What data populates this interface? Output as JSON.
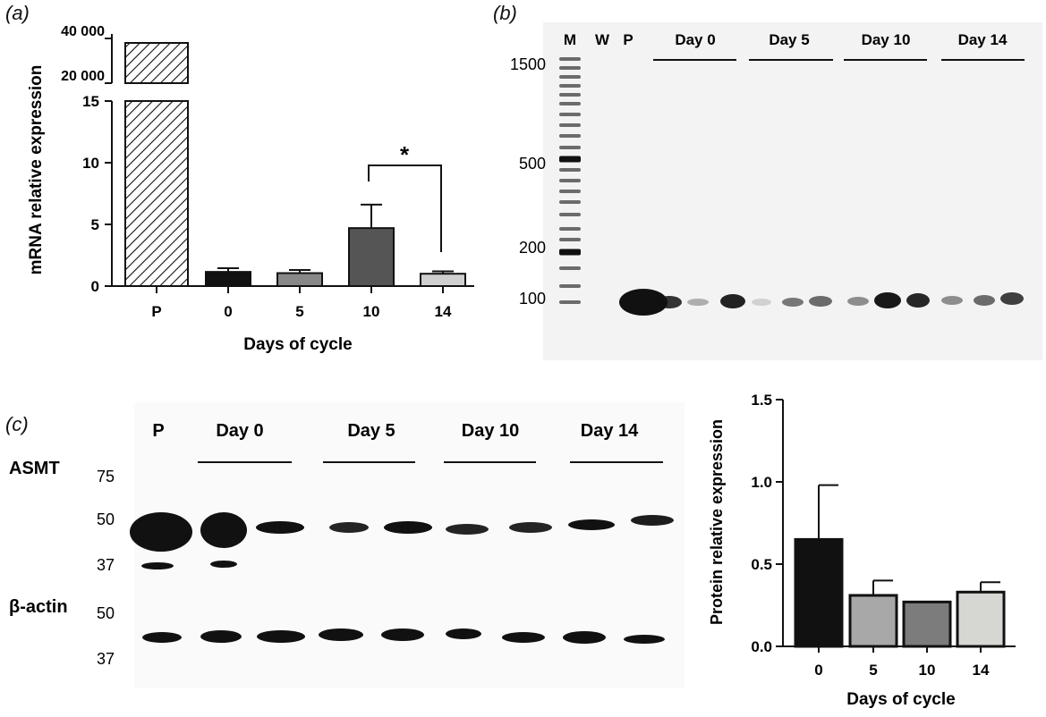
{
  "panels": {
    "a": "(a)",
    "b": "(b)",
    "c": "(c)"
  },
  "chart_data": [
    {
      "type": "bar",
      "panel": "a",
      "categories": [
        "P",
        "0",
        "5",
        "10",
        "14"
      ],
      "values": [
        38000,
        1.15,
        1.05,
        4.7,
        1.0
      ],
      "errors": [
        0,
        0.3,
        0.25,
        1.9,
        0.2
      ],
      "bar_colors": [
        "hatch",
        "#111111",
        "#888888",
        "#555555",
        "#cfcfcf"
      ],
      "xlabel": "Days of cycle",
      "ylabel": "mRNA relative expression",
      "y_axis_lower": {
        "range": [
          0,
          15
        ],
        "ticks": [
          "0",
          "5",
          "10",
          "15"
        ]
      },
      "y_axis_upper": {
        "ticks": [
          "20 000",
          "40 000"
        ]
      },
      "broken_axis": true,
      "significance": {
        "between": [
          "10",
          "14"
        ],
        "label": "*"
      }
    },
    {
      "type": "bar",
      "panel": "c",
      "categories": [
        "0",
        "5",
        "10",
        "14"
      ],
      "values": [
        0.65,
        0.31,
        0.27,
        0.33
      ],
      "errors": [
        0.33,
        0.09,
        0.0,
        0.06
      ],
      "bar_colors": [
        "#111111",
        "#a8a8a8",
        "#7c7c7c",
        "#d6d6d2"
      ],
      "xlabel": "Days of cycle",
      "ylabel": "Protein relative expression",
      "ylim": [
        0,
        1.5
      ],
      "yticks": [
        "0.0",
        "0.5",
        "1.0",
        "1.5"
      ]
    }
  ],
  "gel": {
    "lanes_header": [
      "M",
      "W",
      "P"
    ],
    "groups": [
      "Day 0",
      "Day 5",
      "Day 10",
      "Day 14"
    ],
    "markers": [
      "1500",
      "500",
      "200",
      "100"
    ]
  },
  "blot": {
    "lanes_header": [
      "P"
    ],
    "groups": [
      "Day 0",
      "Day 5",
      "Day 10",
      "Day 14"
    ],
    "proteins": [
      "ASMT",
      "β-actin"
    ],
    "markers_asmt": [
      "75",
      "50",
      "37"
    ],
    "markers_actin": [
      "50",
      "37"
    ]
  }
}
